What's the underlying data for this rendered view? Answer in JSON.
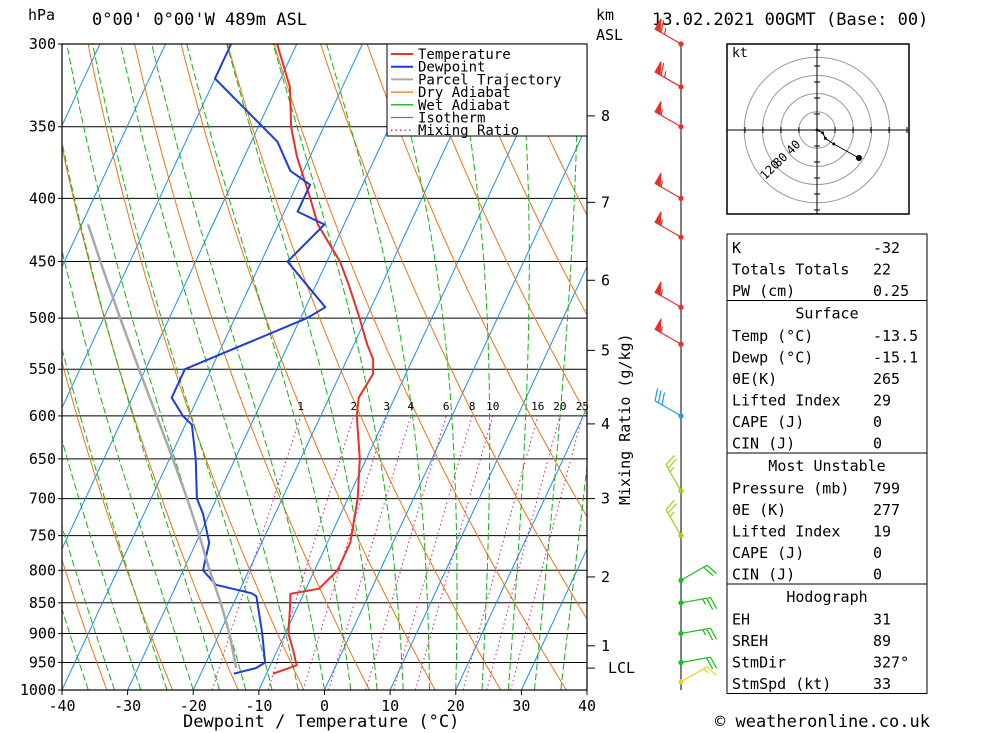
{
  "header": {
    "location": "0°00' 0°00'W 489m ASL",
    "date": "13.02.2021 00GMT (Base: 00)",
    "hpa_unit": "hPa",
    "km_unit": "km",
    "asl_unit": "ASL"
  },
  "footer": {
    "copyright": "© weatheronline.co.uk"
  },
  "chart_data": [
    {
      "type": "line",
      "subtype": "skew-t log-p sounding",
      "xlabel": "Dewpoint / Temperature (°C)",
      "ylabel": "hPa",
      "xlim": [
        -40,
        40
      ],
      "ylim": [
        1000,
        300
      ],
      "y_scale": "log",
      "x_ticks": [
        -40,
        -30,
        -20,
        -10,
        0,
        10,
        20,
        30,
        40
      ],
      "p_ticks": [
        300,
        350,
        400,
        450,
        500,
        550,
        600,
        650,
        700,
        750,
        800,
        850,
        900,
        950,
        1000
      ],
      "km_ticks": [
        {
          "label": "1",
          "p": 921
        },
        {
          "label": "2",
          "p": 810
        },
        {
          "label": "3",
          "p": 700
        },
        {
          "label": "4",
          "p": 609
        },
        {
          "label": "5",
          "p": 531
        },
        {
          "label": "6",
          "p": 466
        },
        {
          "label": "7",
          "p": 403
        },
        {
          "label": "8",
          "p": 343
        }
      ],
      "lcl": {
        "label": "LCL",
        "p": 960
      },
      "mixing_ratio_axis_label": "Mixing Ratio (g/kg)",
      "mixing_ratios": [
        "1",
        "2",
        "3",
        "4",
        "6",
        "8",
        "10",
        "16",
        "20",
        "25"
      ],
      "legend": [
        "Temperature",
        "Dewpoint",
        "Parcel Trajectory",
        "Dry Adiabat",
        "Wet Adiabat",
        "Isotherm",
        "Mixing Ratio"
      ],
      "legend_position": "top-right",
      "colors": {
        "temperature": "#e8302a",
        "dewpoint": "#1c3ddc",
        "parcel": "#a8a8a8",
        "dry_adiabat": "#e8761a",
        "wet_adiabat": "#18b018",
        "isotherm": "#1a8fe6",
        "mixing_ratio": "#d01a8c"
      },
      "series": [
        {
          "name": "Temperature",
          "points": [
            {
              "p": 970,
              "t": -9
            },
            {
              "p": 955,
              "t": -6
            },
            {
              "p": 930,
              "t": -7.5
            },
            {
              "p": 900,
              "t": -9.5
            },
            {
              "p": 860,
              "t": -11
            },
            {
              "p": 836,
              "t": -12
            },
            {
              "p": 828,
              "t": -8
            },
            {
              "p": 800,
              "t": -6.5
            },
            {
              "p": 760,
              "t": -6.5
            },
            {
              "p": 700,
              "t": -8.5
            },
            {
              "p": 650,
              "t": -11
            },
            {
              "p": 600,
              "t": -14.5
            },
            {
              "p": 580,
              "t": -15.5
            },
            {
              "p": 555,
              "t": -15
            },
            {
              "p": 540,
              "t": -16
            },
            {
              "p": 525,
              "t": -18
            },
            {
              "p": 500,
              "t": -21
            },
            {
              "p": 470,
              "t": -25
            },
            {
              "p": 450,
              "t": -28
            },
            {
              "p": 420,
              "t": -34
            },
            {
              "p": 400,
              "t": -37
            },
            {
              "p": 370,
              "t": -42
            },
            {
              "p": 350,
              "t": -45
            },
            {
              "p": 325,
              "t": -48
            },
            {
              "p": 300,
              "t": -53
            }
          ]
        },
        {
          "name": "Dewpoint",
          "points": [
            {
              "p": 970,
              "t": -15
            },
            {
              "p": 960,
              "t": -12
            },
            {
              "p": 950,
              "t": -11
            },
            {
              "p": 900,
              "t": -13.5
            },
            {
              "p": 840,
              "t": -17
            },
            {
              "p": 835,
              "t": -18
            },
            {
              "p": 822,
              "t": -24
            },
            {
              "p": 800,
              "t": -27
            },
            {
              "p": 760,
              "t": -28
            },
            {
              "p": 720,
              "t": -31
            },
            {
              "p": 700,
              "t": -33
            },
            {
              "p": 650,
              "t": -36
            },
            {
              "p": 610,
              "t": -39
            },
            {
              "p": 600,
              "t": -41
            },
            {
              "p": 580,
              "t": -44
            },
            {
              "p": 550,
              "t": -44
            },
            {
              "p": 500,
              "t": -29
            },
            {
              "p": 490,
              "t": -27
            },
            {
              "p": 450,
              "t": -36
            },
            {
              "p": 420,
              "t": -33
            },
            {
              "p": 410,
              "t": -38
            },
            {
              "p": 390,
              "t": -38
            },
            {
              "p": 380,
              "t": -42
            },
            {
              "p": 360,
              "t": -46
            },
            {
              "p": 320,
              "t": -60
            },
            {
              "p": 300,
              "t": -60
            }
          ]
        },
        {
          "name": "Parcel Trajectory",
          "points": [
            {
              "p": 960,
              "t": -15
            },
            {
              "p": 900,
              "t": -18.5
            },
            {
              "p": 850,
              "t": -22
            },
            {
              "p": 800,
              "t": -26
            },
            {
              "p": 750,
              "t": -30
            },
            {
              "p": 700,
              "t": -34.5
            },
            {
              "p": 650,
              "t": -39.5
            },
            {
              "p": 600,
              "t": -45
            },
            {
              "p": 550,
              "t": -51
            },
            {
              "p": 500,
              "t": -57.5
            },
            {
              "p": 450,
              "t": -64.5
            },
            {
              "p": 420,
              "t": -69
            }
          ]
        }
      ],
      "wind_barbs": [
        {
          "p": 300,
          "dir": 300,
          "kt": 65
        },
        {
          "p": 325,
          "dir": 300,
          "kt": 65
        },
        {
          "p": 350,
          "dir": 300,
          "kt": 55
        },
        {
          "p": 400,
          "dir": 300,
          "kt": 55
        },
        {
          "p": 430,
          "dir": 300,
          "kt": 55
        },
        {
          "p": 490,
          "dir": 300,
          "kt": 55
        },
        {
          "p": 525,
          "dir": 300,
          "kt": 55
        },
        {
          "p": 600,
          "dir": 300,
          "kt": 30
        },
        {
          "p": 690,
          "dir": 330,
          "kt": 25
        },
        {
          "p": 750,
          "dir": 330,
          "kt": 25
        },
        {
          "p": 815,
          "dir": 60,
          "kt": 20
        },
        {
          "p": 850,
          "dir": 80,
          "kt": 25
        },
        {
          "p": 900,
          "dir": 80,
          "kt": 25
        },
        {
          "p": 950,
          "dir": 80,
          "kt": 20
        },
        {
          "p": 985,
          "dir": 60,
          "kt": 15
        }
      ]
    },
    {
      "type": "scatter",
      "subtype": "hodograph",
      "unit": "kt",
      "ring_labels": [
        "40",
        "80",
        "120"
      ],
      "points": [
        {
          "u": 0,
          "v": 0
        },
        {
          "u": 4,
          "v": -2
        },
        {
          "u": 6,
          "v": -6
        },
        {
          "u": 12,
          "v": -10
        },
        {
          "u": 30,
          "v": -20
        }
      ]
    }
  ],
  "indices": {
    "top": [
      {
        "label": "K",
        "value": "-32"
      },
      {
        "label": "Totals Totals",
        "value": "22"
      },
      {
        "label": "PW (cm)",
        "value": "0.25"
      }
    ],
    "surface": {
      "title": "Surface",
      "rows": [
        {
          "label": "Temp (°C)",
          "value": "-13.5"
        },
        {
          "label": "Dewp (°C)",
          "value": "-15.1"
        },
        {
          "label": "θE(K)",
          "value": "265"
        },
        {
          "label": "Lifted Index",
          "value": "29"
        },
        {
          "label": "CAPE (J)",
          "value": "0"
        },
        {
          "label": "CIN (J)",
          "value": "0"
        }
      ]
    },
    "most_unstable": {
      "title": "Most Unstable",
      "rows": [
        {
          "label": "Pressure (mb)",
          "value": "799"
        },
        {
          "label": "θE (K)",
          "value": "277"
        },
        {
          "label": "Lifted Index",
          "value": "19"
        },
        {
          "label": "CAPE (J)",
          "value": "0"
        },
        {
          "label": "CIN (J)",
          "value": "0"
        }
      ]
    },
    "hodograph": {
      "title": "Hodograph",
      "rows": [
        {
          "label": "EH",
          "value": "31"
        },
        {
          "label": "SREH",
          "value": "89"
        },
        {
          "label": "StmDir",
          "value": "327°"
        },
        {
          "label": "StmSpd (kt)",
          "value": "33"
        }
      ]
    }
  }
}
